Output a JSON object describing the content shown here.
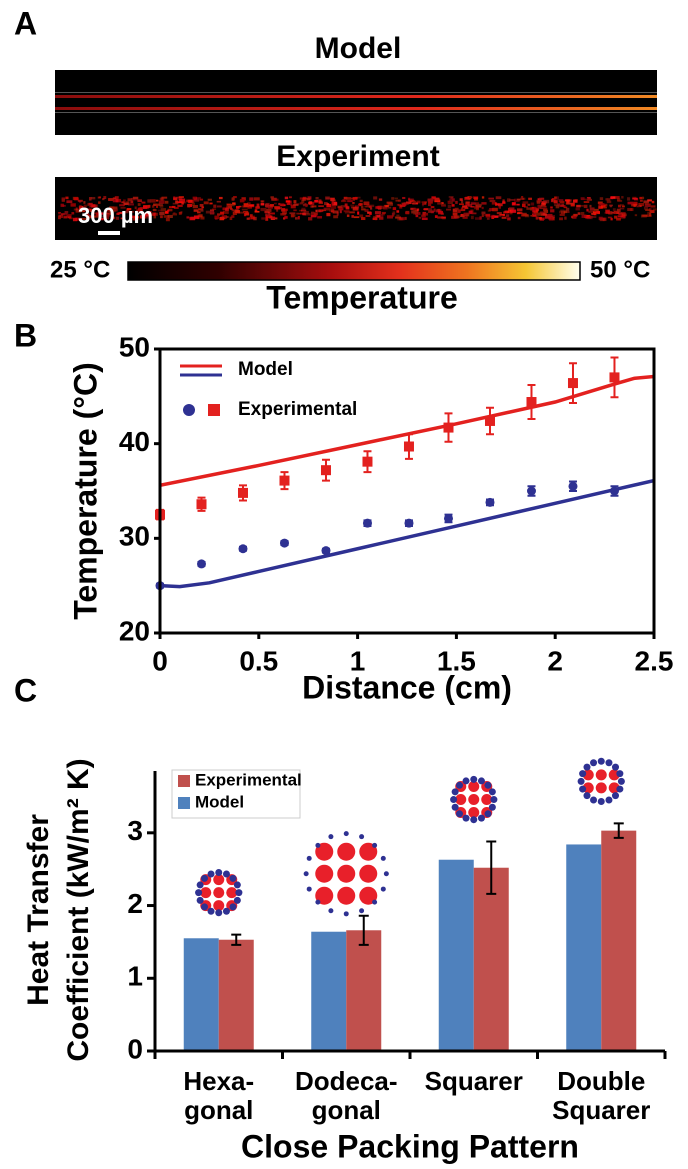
{
  "chart_data": [
    {
      "type": "image",
      "panel": "A",
      "titles": [
        "Model",
        "Experiment"
      ],
      "scale_bar": "300 µm",
      "colorbar_labels": [
        "25 °C",
        "50 °C"
      ],
      "colorbar_title": "Temperature"
    },
    {
      "type": "line",
      "panel": "B",
      "xlabel": "Distance (cm)",
      "ylabel": "Temperature (°C)",
      "xlim": [
        0,
        2.5
      ],
      "ylim": [
        20,
        50
      ],
      "xticks": [
        0,
        0.5,
        1,
        1.5,
        2,
        2.5
      ],
      "yticks": [
        20,
        30,
        40,
        50
      ],
      "series": [
        {
          "name": "Model",
          "type": "line",
          "color": "#e3211f",
          "x": [
            0,
            0.5,
            1,
            1.5,
            2,
            2.3,
            2.4,
            2.5
          ],
          "values": [
            35.6,
            37.7,
            39.9,
            42.1,
            44.4,
            46.3,
            46.9,
            47.1
          ]
        },
        {
          "type": "line",
          "color": "#2e3192",
          "x": [
            0,
            0.1,
            0.25,
            0.5,
            1,
            1.5,
            2,
            2.5
          ],
          "values": [
            25.0,
            24.9,
            25.3,
            26.5,
            28.9,
            31.3,
            33.7,
            36.1
          ]
        },
        {
          "name": "Experimental",
          "type": "scatter",
          "marker": "circle",
          "color": "#2e3192",
          "x": [
            0,
            0.21,
            0.42,
            0.63,
            0.84,
            1.05,
            1.26,
            1.46,
            1.67,
            1.88,
            2.09,
            2.3
          ],
          "values": [
            25.0,
            27.3,
            28.9,
            29.5,
            28.7,
            31.6,
            31.6,
            32.1,
            33.8,
            35.0,
            35.5,
            35.0
          ],
          "errors": [
            0.2,
            0.2,
            0.2,
            0.2,
            0.2,
            0.3,
            0.3,
            0.4,
            0.3,
            0.5,
            0.5,
            0.5
          ]
        },
        {
          "type": "scatter",
          "marker": "square",
          "color": "#e3211f",
          "x": [
            0,
            0.21,
            0.42,
            0.63,
            0.84,
            1.05,
            1.26,
            1.46,
            1.67,
            1.88,
            2.09,
            2.3
          ],
          "values": [
            32.5,
            33.6,
            34.8,
            36.1,
            37.2,
            38.1,
            39.7,
            41.7,
            42.4,
            44.4,
            46.4,
            47.0
          ],
          "errors": [
            0.5,
            0.7,
            0.8,
            0.9,
            1.1,
            1.1,
            1.3,
            1.5,
            1.4,
            1.8,
            2.1,
            2.1
          ]
        }
      ]
    },
    {
      "type": "bar",
      "panel": "C",
      "xlabel": "Close Packing Pattern",
      "ylabel": [
        "Heat Transfer",
        "Coefficient (kW/m² K)"
      ],
      "categories": [
        [
          "Hexa-",
          "gonal"
        ],
        [
          "Dodeca-",
          "gonal"
        ],
        [
          "Squarer"
        ],
        [
          "Double",
          "Squarer"
        ]
      ],
      "ylim": [
        0,
        3.85
      ],
      "yticks": [
        0,
        1,
        2,
        3
      ],
      "series": [
        {
          "name": "Model",
          "color": "#4f81bd",
          "values": [
            1.55,
            1.64,
            2.63,
            2.84
          ]
        },
        {
          "name": "Experimental",
          "color": "#c0504d",
          "values": [
            1.53,
            1.66,
            2.52,
            3.03
          ],
          "errors": [
            0.07,
            0.2,
            0.36,
            0.1
          ]
        }
      ]
    }
  ]
}
